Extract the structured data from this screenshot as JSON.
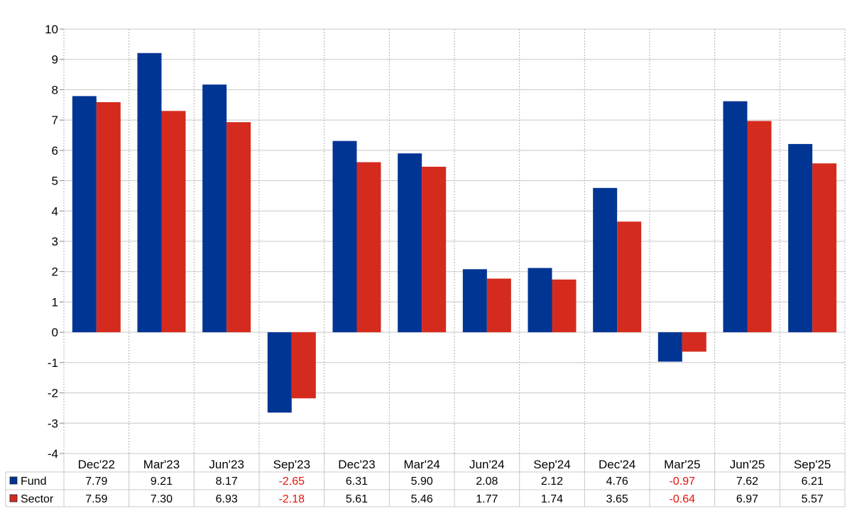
{
  "chart_data": {
    "type": "bar",
    "title": "",
    "xlabel": "",
    "ylabel": "",
    "categories": [
      "Dec'22",
      "Mar'23",
      "Jun'23",
      "Sep'23",
      "Dec'23",
      "Mar'24",
      "Jun'24",
      "Sep'24",
      "Dec'24",
      "Mar'25",
      "Jun'25",
      "Sep'25"
    ],
    "series": [
      {
        "name": "Fund",
        "color": "#003594",
        "values": [
          7.79,
          9.21,
          8.17,
          -2.65,
          6.31,
          5.9,
          2.08,
          2.12,
          4.76,
          -0.97,
          7.62,
          6.21
        ],
        "labels": [
          "7.79",
          "9.21",
          "8.17",
          "-2.65",
          "6.31",
          "5.90",
          "2.08",
          "2.12",
          "4.76",
          "-0.97",
          "7.62",
          "6.21"
        ]
      },
      {
        "name": "Sector",
        "color": "#d52b1e",
        "values": [
          7.59,
          7.3,
          6.93,
          -2.18,
          5.61,
          5.46,
          1.77,
          1.74,
          3.65,
          -0.64,
          6.97,
          5.57
        ],
        "labels": [
          "7.59",
          "7.30",
          "6.93",
          "-2.18",
          "5.61",
          "5.46",
          "1.77",
          "1.74",
          "3.65",
          "-0.64",
          "6.97",
          "5.57"
        ]
      }
    ],
    "ylim": [
      -4,
      10
    ],
    "yticks": [
      "10",
      "9",
      "8",
      "7",
      "6",
      "5",
      "4",
      "3",
      "2",
      "1",
      "0",
      "-1",
      "-2",
      "-3",
      "-4"
    ],
    "grid": true,
    "legend": "table-below",
    "negative_value_color": "#e8100c"
  }
}
